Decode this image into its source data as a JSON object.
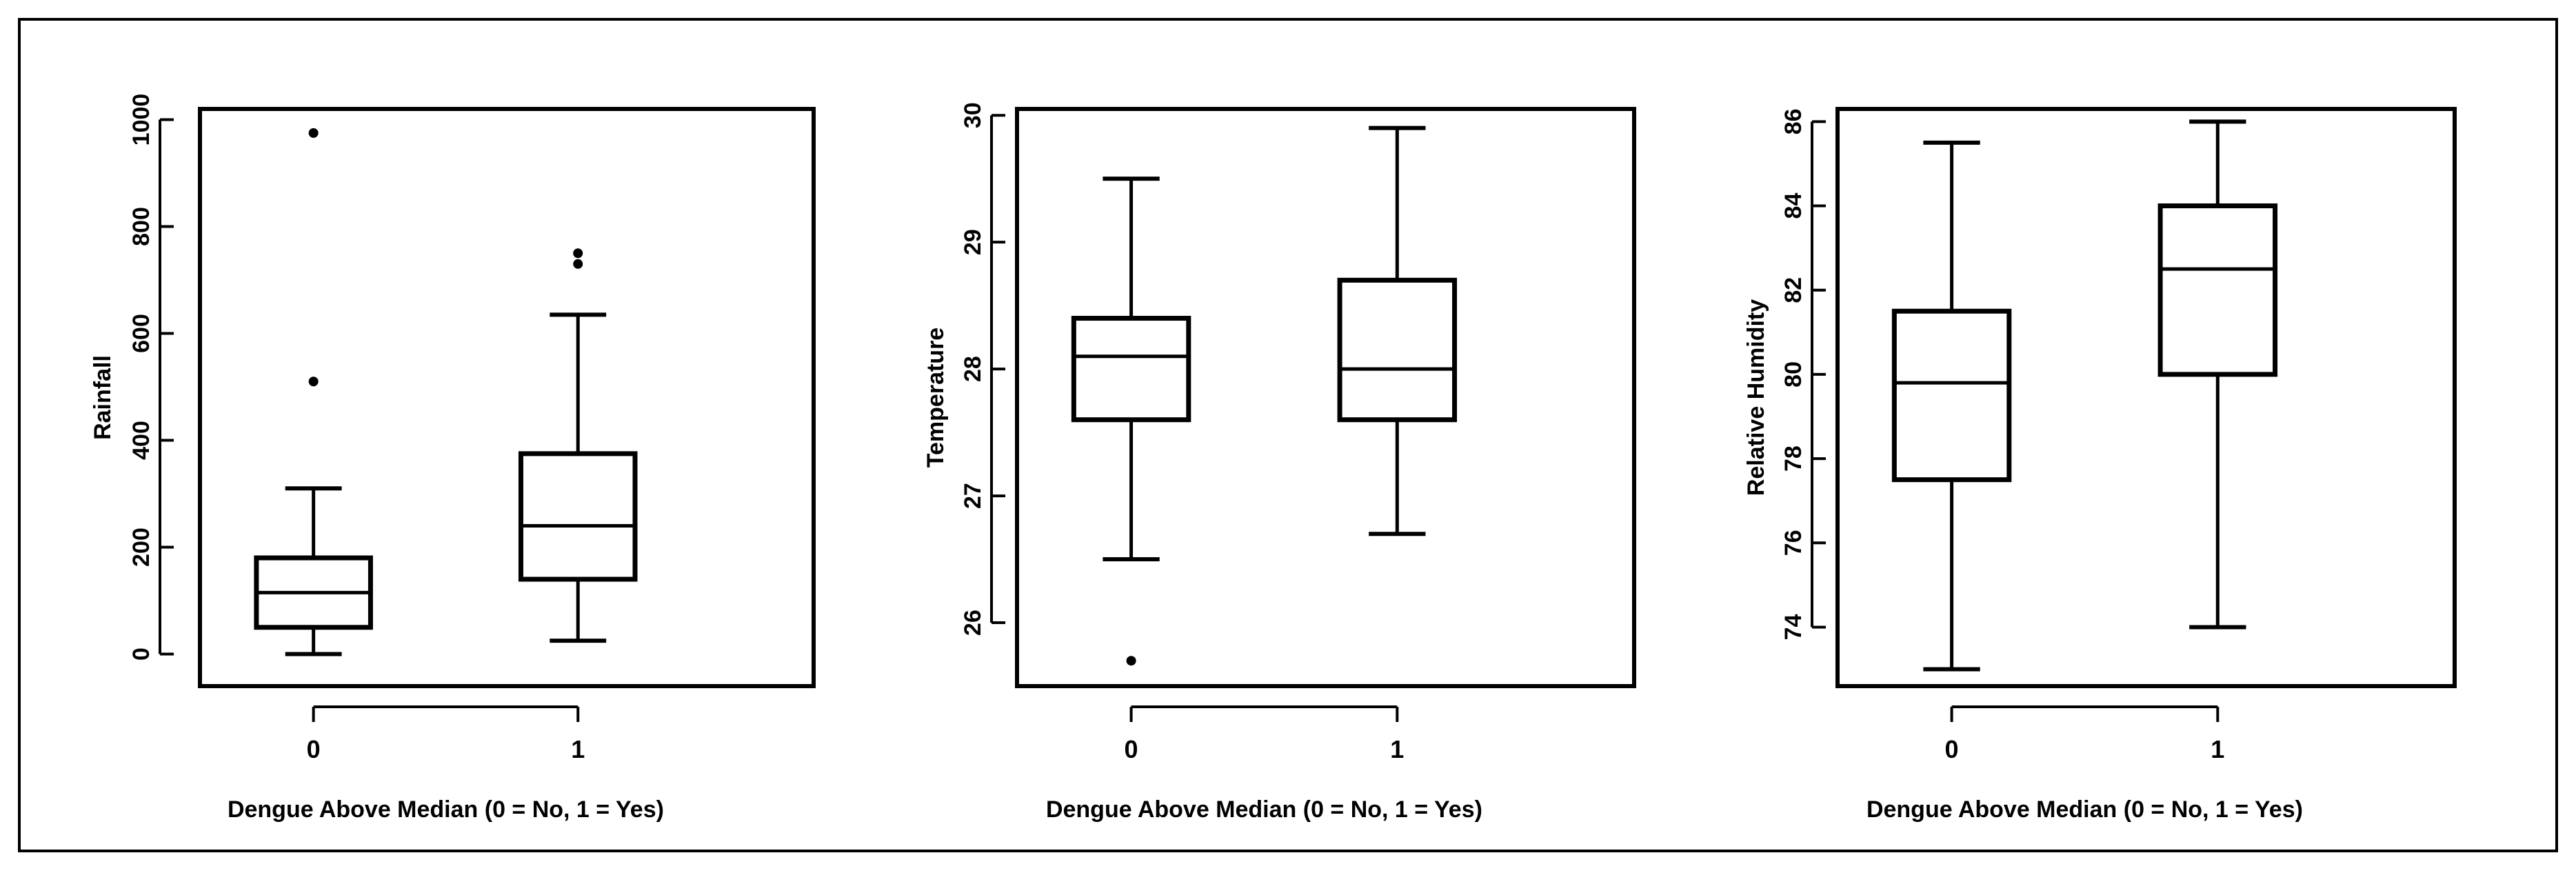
{
  "chart_data": [
    {
      "type": "box",
      "xlabel": "Dengue Above Median (0 = No, 1 = Yes)",
      "ylabel": "Rainfall",
      "ylim": [
        -60,
        1020
      ],
      "yticks": [
        0,
        200,
        400,
        600,
        800,
        1000
      ],
      "ytick_labels": [
        "0",
        "200",
        "400",
        "600",
        "800",
        "1000"
      ],
      "ytick_rotated": true,
      "categories": [
        "0",
        "1"
      ],
      "boxes": [
        {
          "category": "0",
          "whisker_low": 0,
          "q1": 50,
          "median": 115,
          "q3": 180,
          "whisker_high": 310,
          "outliers": [
            510,
            975
          ]
        },
        {
          "category": "1",
          "whisker_low": 25,
          "q1": 140,
          "median": 240,
          "q3": 375,
          "whisker_high": 635,
          "outliers": [
            730,
            750
          ]
        }
      ]
    },
    {
      "type": "box",
      "xlabel": "Dengue Above Median (0 = No, 1 = Yes)",
      "ylabel": "Temperature",
      "ylim": [
        25.5,
        30.05
      ],
      "yticks": [
        26,
        27,
        28,
        29,
        30
      ],
      "ytick_labels": [
        "26",
        "27",
        "28",
        "29",
        "30"
      ],
      "ytick_rotated": false,
      "categories": [
        "0",
        "1"
      ],
      "boxes": [
        {
          "category": "0",
          "whisker_low": 26.5,
          "q1": 27.6,
          "median": 28.1,
          "q3": 28.4,
          "whisker_high": 29.5,
          "outliers": [
            25.7
          ]
        },
        {
          "category": "1",
          "whisker_low": 26.7,
          "q1": 27.6,
          "median": 28.0,
          "q3": 28.7,
          "whisker_high": 29.9,
          "outliers": []
        }
      ]
    },
    {
      "type": "box",
      "xlabel": "Dengue Above Median (0 = No, 1 = Yes)",
      "ylabel": "Relative Humidity",
      "ylim": [
        72.6,
        86.3
      ],
      "yticks": [
        74,
        76,
        78,
        80,
        82,
        84,
        86
      ],
      "ytick_labels": [
        "74",
        "76",
        "78",
        "80",
        "82",
        "84",
        "86"
      ],
      "ytick_rotated": false,
      "categories": [
        "0",
        "1"
      ],
      "boxes": [
        {
          "category": "0",
          "whisker_low": 73.0,
          "q1": 77.5,
          "median": 79.8,
          "q3": 81.5,
          "whisker_high": 85.5,
          "outliers": []
        },
        {
          "category": "1",
          "whisker_low": 74.0,
          "q1": 80.0,
          "median": 82.5,
          "q3": 84.0,
          "whisker_high": 86.0,
          "outliers": []
        }
      ]
    }
  ]
}
